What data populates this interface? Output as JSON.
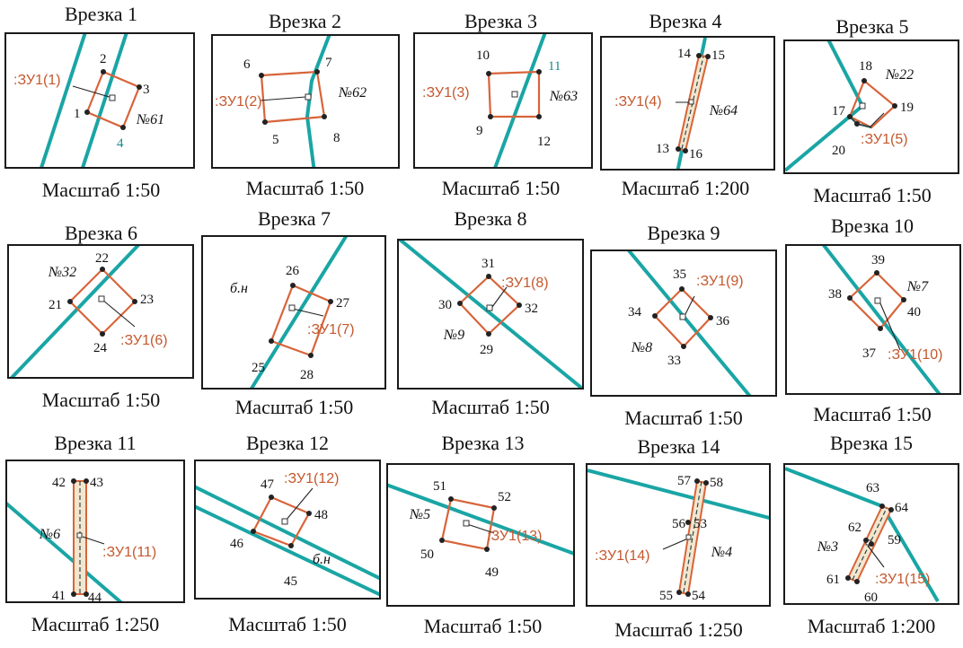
{
  "insets": [
    {
      "title": "Врезка 1",
      "scale": "Масштаб 1:50",
      "points": [
        "1",
        "2",
        "3",
        "4"
      ],
      "zu": ":ЗУ1(1)",
      "parcel": "№61"
    },
    {
      "title": "Врезка 2",
      "scale": "Масштаб 1:50",
      "points": [
        "5",
        "6",
        "7",
        "8"
      ],
      "zu": ":ЗУ1(2)",
      "parcel": "№62"
    },
    {
      "title": "Врезка 3",
      "scale": "Масштаб 1:50",
      "points": [
        "9",
        "10",
        "11",
        "12"
      ],
      "zu": ":ЗУ1(3)",
      "parcel": "№63"
    },
    {
      "title": "Врезка 4",
      "scale": "Масштаб 1:200",
      "points": [
        "13",
        "14",
        "15",
        "16"
      ],
      "zu": ":ЗУ1(4)",
      "parcel": "№64"
    },
    {
      "title": "Врезка 5",
      "scale": "Масштаб 1:50",
      "points": [
        "17",
        "18",
        "19",
        "20"
      ],
      "zu": ":ЗУ1(5)",
      "parcel": "№22"
    },
    {
      "title": "Врезка 6",
      "scale": "Масштаб 1:50",
      "points": [
        "21",
        "22",
        "23",
        "24"
      ],
      "zu": ":ЗУ1(6)",
      "parcel": "№32"
    },
    {
      "title": "Врезка 7",
      "scale": "Масштаб 1:50",
      "points": [
        "25",
        "26",
        "27",
        "28"
      ],
      "zu": ":ЗУ1(7)",
      "parcel": "б.н"
    },
    {
      "title": "Врезка 8",
      "scale": "Масштаб 1:50",
      "points": [
        "29",
        "30",
        "31",
        "32"
      ],
      "zu": ":ЗУ1(8)",
      "parcel": "№9"
    },
    {
      "title": "Врезка 9",
      "scale": "Масштаб 1:50",
      "points": [
        "33",
        "34",
        "35",
        "36"
      ],
      "zu": ":ЗУ1(9)",
      "parcel": "№8"
    },
    {
      "title": "Врезка 10",
      "scale": "Масштаб 1:50",
      "points": [
        "37",
        "38",
        "39",
        "40"
      ],
      "zu": ":ЗУ1(10)",
      "parcel": "№7"
    },
    {
      "title": "Врезка 11",
      "scale": "Масштаб 1:250",
      "points": [
        "41",
        "42",
        "43",
        "44"
      ],
      "zu": ":ЗУ1(11)",
      "parcel": "№6"
    },
    {
      "title": "Врезка 12",
      "scale": "Масштаб 1:50",
      "points": [
        "45",
        "46",
        "47",
        "48"
      ],
      "zu": ":ЗУ1(12)",
      "parcel": "б.н"
    },
    {
      "title": "Врезка 13",
      "scale": "Масштаб 1:50",
      "points": [
        "49",
        "50",
        "51",
        "52"
      ],
      "zu": ":ЗУ1(13)",
      "parcel": "№5"
    },
    {
      "title": "Врезка 14",
      "scale": "Масштаб 1:250",
      "points": [
        "53",
        "54",
        "55",
        "56",
        "57",
        "58"
      ],
      "zu": ":ЗУ1(14)",
      "parcel": "№4"
    },
    {
      "title": "Врезка 15",
      "scale": "Масштаб 1:200",
      "points": [
        "59",
        "60",
        "61",
        "62",
        "63",
        "64"
      ],
      "zu": ":ЗУ1(15)",
      "parcel": "№3"
    }
  ],
  "colors": {
    "road": "#1aa5a5",
    "parcel": "#d8643a",
    "label": "#c4582e",
    "frame": "#1a1a1a"
  }
}
